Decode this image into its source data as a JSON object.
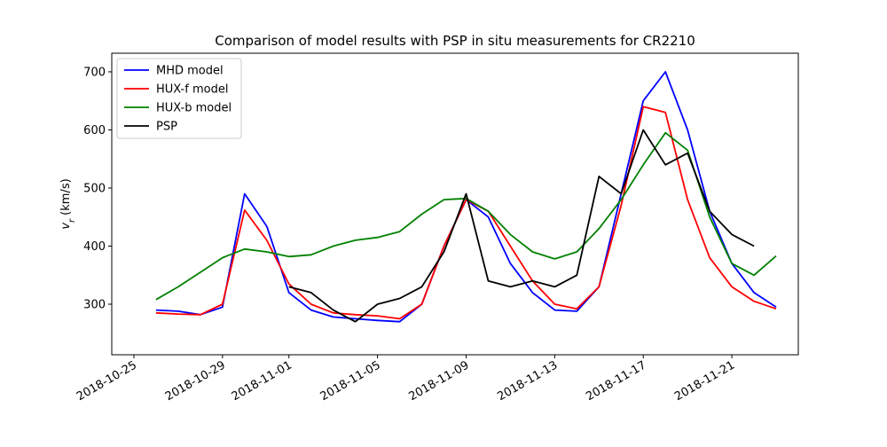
{
  "chart_data": {
    "type": "line",
    "title": "Comparison of model results with PSP in situ measurements for CR2210",
    "ylabel": [
      "v",
      "r",
      "(km/s)"
    ],
    "x": [
      "2018-10-26",
      "2018-10-27",
      "2018-10-28",
      "2018-10-29",
      "2018-10-30",
      "2018-10-31",
      "2018-11-01",
      "2018-11-02",
      "2018-11-03",
      "2018-11-04",
      "2018-11-05",
      "2018-11-06",
      "2018-11-07",
      "2018-11-08",
      "2018-11-09",
      "2018-11-10",
      "2018-11-11",
      "2018-11-12",
      "2018-11-13",
      "2018-11-14",
      "2018-11-15",
      "2018-11-16",
      "2018-11-17",
      "2018-11-18",
      "2018-11-19",
      "2018-11-20",
      "2018-11-21",
      "2018-11-22",
      "2018-11-23"
    ],
    "series": [
      {
        "name": "MHD model",
        "color": "#0000ff",
        "values": [
          290,
          288,
          282,
          295,
          490,
          434,
          320,
          290,
          278,
          275,
          272,
          270,
          300,
          400,
          480,
          450,
          370,
          320,
          290,
          288,
          330,
          490,
          650,
          700,
          600,
          460,
          370,
          320,
          295
        ]
      },
      {
        "name": "HUX-f model",
        "color": "#ff0000",
        "values": [
          285,
          283,
          282,
          300,
          462,
          410,
          335,
          300,
          285,
          282,
          280,
          275,
          300,
          400,
          480,
          460,
          400,
          340,
          300,
          292,
          330,
          470,
          640,
          630,
          480,
          380,
          330,
          305,
          292
        ]
      },
      {
        "name": "HUX-b model",
        "color": "#008000",
        "values": [
          308,
          330,
          355,
          380,
          395,
          390,
          382,
          385,
          400,
          410,
          415,
          425,
          455,
          480,
          482,
          460,
          420,
          390,
          378,
          390,
          430,
          480,
          540,
          595,
          565,
          450,
          370,
          350,
          383
        ]
      },
      {
        "name": "PSP",
        "color": "#000000",
        "values": [
          null,
          null,
          null,
          null,
          null,
          null,
          330,
          320,
          290,
          270,
          300,
          310,
          330,
          390,
          490,
          340,
          330,
          340,
          330,
          350,
          520,
          490,
          600,
          540,
          560,
          460,
          420,
          400,
          null
        ]
      }
    ],
    "xlim": [
      "2018-10-24",
      "2018-11-24"
    ],
    "xticks": [
      "2018-10-25",
      "2018-10-29",
      "2018-11-01",
      "2018-11-05",
      "2018-11-09",
      "2018-11-13",
      "2018-11-17",
      "2018-11-21"
    ],
    "ylim": [
      213,
      732
    ],
    "yticks": [
      300,
      400,
      500,
      600,
      700
    ],
    "legend": "upper left"
  }
}
